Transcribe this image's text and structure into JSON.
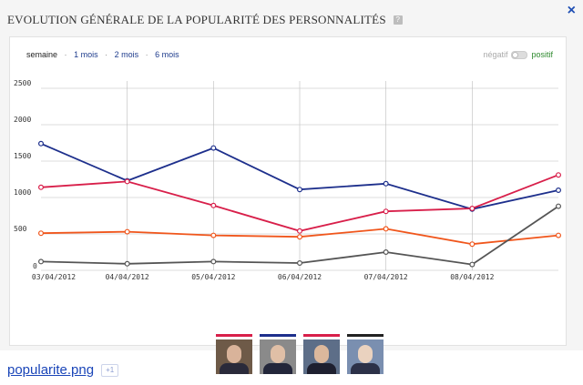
{
  "widget": {
    "title": "EVOLUTION GÉNÉRALE DE LA POPULARITÉ DES PERSONNALITÉS",
    "info_icon_label": "?",
    "close_label": "×"
  },
  "range_nav": {
    "current": "semaine",
    "links": [
      "1 mois",
      "2 mois",
      "6 mois"
    ],
    "separator": "·"
  },
  "toggle": {
    "negative_label": "négatif",
    "positive_label": "positif"
  },
  "colors": {
    "navy": "#1d2f8c",
    "crimson": "#d81f4a",
    "orange": "#f0561c",
    "gray": "#555555",
    "grid": "#bdbdbd"
  },
  "chart_data": {
    "type": "line",
    "title": "EVOLUTION GÉNÉRALE DE LA POPULARITÉ DES PERSONNALITÉS",
    "xlabel": "",
    "ylabel": "",
    "x_ticks": [
      "03/04/2012",
      "04/04/2012",
      "05/04/2012",
      "06/04/2012",
      "07/04/2012",
      "08/04/2012"
    ],
    "y_ticks": [
      0,
      500,
      1000,
      1500,
      2000,
      2500
    ],
    "ylim": [
      0,
      2600
    ],
    "x_points": 7,
    "grid": "vertical-and-horizontal",
    "series": [
      {
        "color": "#1d2f8c",
        "values": [
          1740,
          1230,
          1680,
          1110,
          1190,
          840,
          1100
        ]
      },
      {
        "color": "#d81f4a",
        "values": [
          1140,
          1220,
          890,
          540,
          810,
          850,
          1310
        ]
      },
      {
        "color": "#f0561c",
        "values": [
          510,
          530,
          480,
          460,
          570,
          360,
          480
        ]
      },
      {
        "color": "#555555",
        "values": [
          120,
          90,
          120,
          100,
          250,
          80,
          880
        ]
      }
    ]
  },
  "legend": {
    "portraits": [
      {
        "icon": "portrait-1-icon",
        "bar_color": "#d81f4a",
        "head": "#d9b39a",
        "body": "#2a2a3a",
        "bg": "#6e5a48"
      },
      {
        "icon": "portrait-2-icon",
        "bar_color": "#1d2f8c",
        "head": "#e0bfa6",
        "body": "#23263a",
        "bg": "#8a8a8a"
      },
      {
        "icon": "portrait-3-icon",
        "bar_color": "#d81f4a",
        "head": "#dcb89c",
        "body": "#1e2030",
        "bg": "#5d6e88"
      },
      {
        "icon": "portrait-4-icon",
        "bar_color": "#222222",
        "head": "#ead2bf",
        "body": "#2c3148",
        "bg": "#7a8fb0"
      }
    ]
  },
  "caption": {
    "file_name": "popularite.png",
    "plus_one": "+1"
  }
}
